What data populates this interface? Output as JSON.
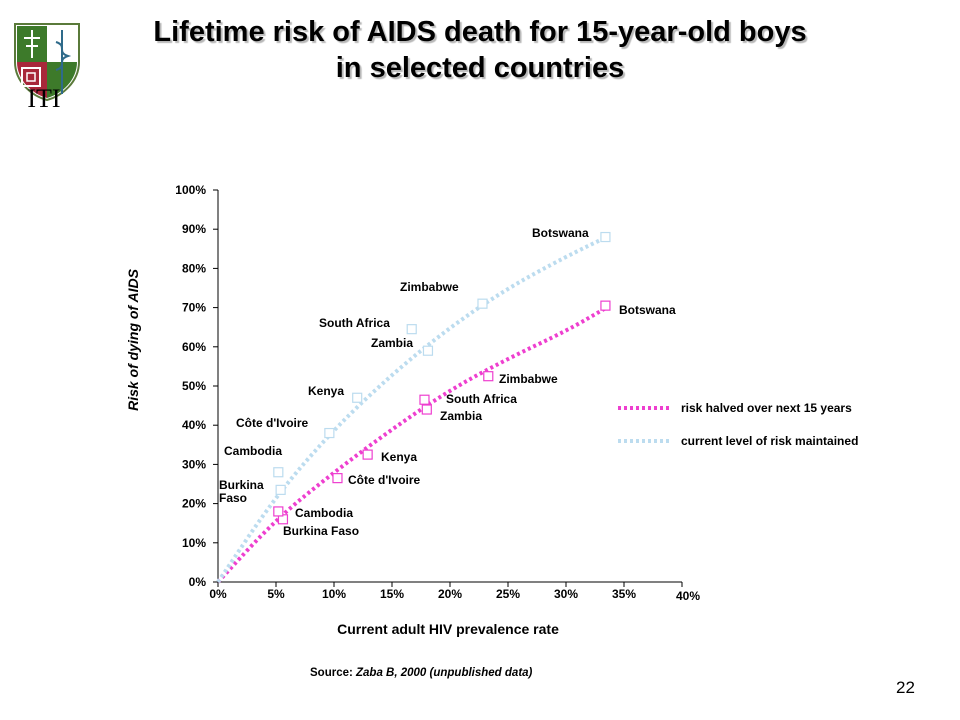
{
  "logo": {
    "text": "ITI"
  },
  "title": {
    "line1": "Lifetime risk of AIDS death for 15-year-old boys",
    "line2": "in selected countries"
  },
  "source": {
    "prefix": "Source: ",
    "citation": "Zaba B, 2000 (unpublished data)"
  },
  "slide_number": "22",
  "colors": {
    "pink": "#ee3fcf",
    "light_blue": "#bcdcef",
    "axis": "#000000"
  },
  "chart_data": {
    "type": "scatter",
    "xlabel": "Current adult HIV prevalence rate",
    "ylabel": "Risk of dying of AIDS",
    "xlim": [
      0,
      40
    ],
    "ylim": [
      0,
      100
    ],
    "x_ticks": [
      0,
      5,
      10,
      15,
      20,
      25,
      30,
      35,
      40
    ],
    "x_tick_labels": [
      "0%",
      "5%",
      "10%",
      "15%",
      "20%",
      "25%",
      "30%",
      "35%",
      "40%"
    ],
    "y_ticks": [
      0,
      10,
      20,
      30,
      40,
      50,
      60,
      70,
      80,
      90,
      100
    ],
    "y_tick_labels": [
      "0%",
      "10%",
      "20%",
      "30%",
      "40%",
      "50%",
      "60%",
      "70%",
      "80%",
      "90%",
      "100%"
    ],
    "legend_position": "right",
    "series": [
      {
        "name": "risk halved over next 15 years",
        "color": "#ee3fcf",
        "curve": [
          [
            0,
            0
          ],
          [
            5,
            16
          ],
          [
            10,
            28
          ],
          [
            15,
            39
          ],
          [
            20,
            49
          ],
          [
            25,
            57
          ],
          [
            30,
            64
          ],
          [
            33.5,
            70
          ]
        ],
        "points": [
          {
            "label": "Burkina Faso",
            "x": 5.6,
            "y": 16
          },
          {
            "label": "Cambodia",
            "x": 5.2,
            "y": 18
          },
          {
            "label": "Côte d'Ivoire",
            "x": 10.3,
            "y": 26.5
          },
          {
            "label": "Kenya",
            "x": 12.9,
            "y": 32.5
          },
          {
            "label": "Zambia",
            "x": 18.0,
            "y": 44
          },
          {
            "label": "South Africa",
            "x": 17.8,
            "y": 46.5
          },
          {
            "label": "Zimbabwe",
            "x": 23.3,
            "y": 52.5
          },
          {
            "label": "Botswana",
            "x": 33.4,
            "y": 70.5
          }
        ]
      },
      {
        "name": "current level of risk maintained",
        "color": "#bcdcef",
        "curve": [
          [
            0,
            0
          ],
          [
            5,
            22
          ],
          [
            10,
            39
          ],
          [
            15,
            53
          ],
          [
            20,
            65
          ],
          [
            25,
            75
          ],
          [
            30,
            83
          ],
          [
            33.5,
            88
          ]
        ],
        "points": [
          {
            "label": "Burkina Faso",
            "x": 5.4,
            "y": 23.5
          },
          {
            "label": "Cambodia",
            "x": 5.2,
            "y": 28
          },
          {
            "label": "Côte d'Ivoire",
            "x": 9.6,
            "y": 38
          },
          {
            "label": "Kenya",
            "x": 12.0,
            "y": 47
          },
          {
            "label": "South Africa",
            "x": 16.7,
            "y": 64.5
          },
          {
            "label": "Zambia",
            "x": 18.1,
            "y": 59
          },
          {
            "label": "Zimbabwe",
            "x": 22.8,
            "y": 71
          },
          {
            "label": "Botswana",
            "x": 33.4,
            "y": 88
          }
        ]
      }
    ]
  }
}
